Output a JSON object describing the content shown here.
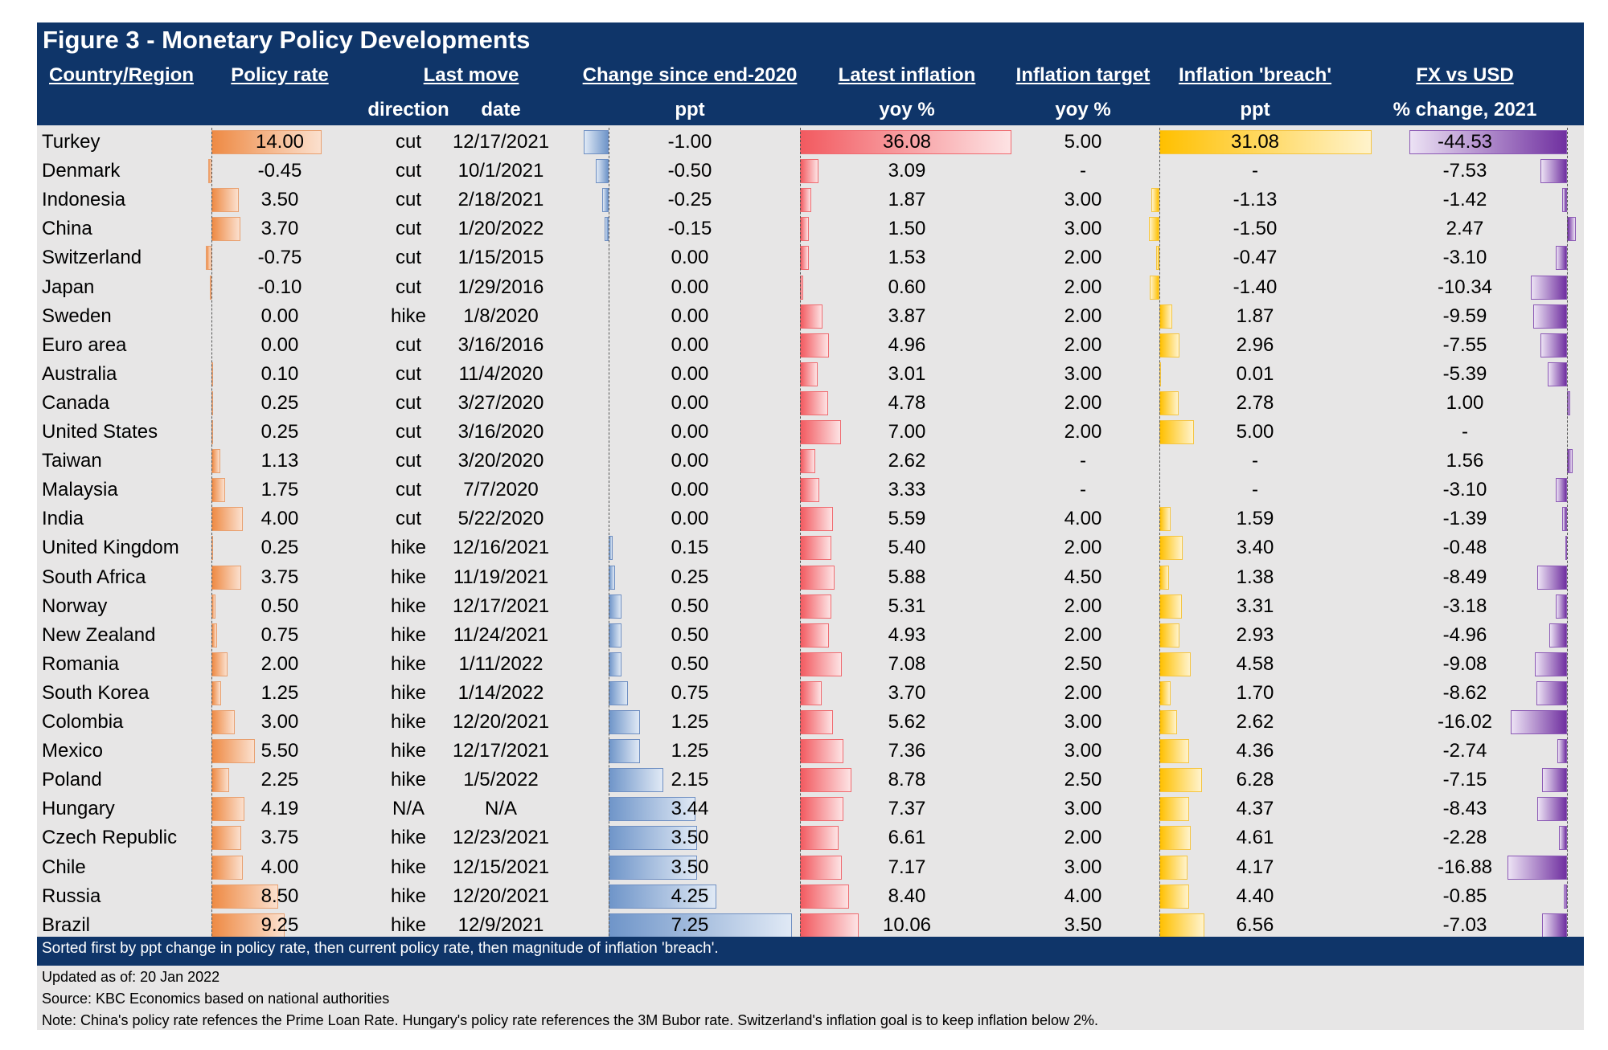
{
  "title": "Figure 3 - Monetary Policy Developments",
  "headers": {
    "country": "Country/Region",
    "policy_rate": "Policy rate",
    "last_move": "Last move",
    "change": "Change since end-2020",
    "latest_inflation": "Latest inflation",
    "inflation_target": "Inflation target",
    "breach": "Inflation 'breach'",
    "fx": "FX vs USD"
  },
  "subheaders": {
    "direction": "direction",
    "date": "date",
    "change": "ppt",
    "latest_inflation": "yoy %",
    "inflation_target": "yoy %",
    "breach": "ppt",
    "fx": "% change, 2021"
  },
  "rows": [
    {
      "country": "Turkey",
      "rate": "14.00",
      "dir": "cut",
      "date": "12/17/2021",
      "chg": "-1.00",
      "infl": "36.08",
      "target": "5.00",
      "breach": "31.08",
      "fx": "-44.53"
    },
    {
      "country": "Denmark",
      "rate": "-0.45",
      "dir": "cut",
      "date": "10/1/2021",
      "chg": "-0.50",
      "infl": "3.09",
      "target": "-",
      "breach": "-",
      "fx": "-7.53"
    },
    {
      "country": "Indonesia",
      "rate": "3.50",
      "dir": "cut",
      "date": "2/18/2021",
      "chg": "-0.25",
      "infl": "1.87",
      "target": "3.00",
      "breach": "-1.13",
      "fx": "-1.42"
    },
    {
      "country": "China",
      "rate": "3.70",
      "dir": "cut",
      "date": "1/20/2022",
      "chg": "-0.15",
      "infl": "1.50",
      "target": "3.00",
      "breach": "-1.50",
      "fx": "2.47"
    },
    {
      "country": "Switzerland",
      "rate": "-0.75",
      "dir": "cut",
      "date": "1/15/2015",
      "chg": "0.00",
      "infl": "1.53",
      "target": "2.00",
      "breach": "-0.47",
      "fx": "-3.10"
    },
    {
      "country": "Japan",
      "rate": "-0.10",
      "dir": "cut",
      "date": "1/29/2016",
      "chg": "0.00",
      "infl": "0.60",
      "target": "2.00",
      "breach": "-1.40",
      "fx": "-10.34"
    },
    {
      "country": "Sweden",
      "rate": "0.00",
      "dir": "hike",
      "date": "1/8/2020",
      "chg": "0.00",
      "infl": "3.87",
      "target": "2.00",
      "breach": "1.87",
      "fx": "-9.59"
    },
    {
      "country": "Euro area",
      "rate": "0.00",
      "dir": "cut",
      "date": "3/16/2016",
      "chg": "0.00",
      "infl": "4.96",
      "target": "2.00",
      "breach": "2.96",
      "fx": "-7.55"
    },
    {
      "country": "Australia",
      "rate": "0.10",
      "dir": "cut",
      "date": "11/4/2020",
      "chg": "0.00",
      "infl": "3.01",
      "target": "3.00",
      "breach": "0.01",
      "fx": "-5.39"
    },
    {
      "country": "Canada",
      "rate": "0.25",
      "dir": "cut",
      "date": "3/27/2020",
      "chg": "0.00",
      "infl": "4.78",
      "target": "2.00",
      "breach": "2.78",
      "fx": "1.00"
    },
    {
      "country": "United States",
      "rate": "0.25",
      "dir": "cut",
      "date": "3/16/2020",
      "chg": "0.00",
      "infl": "7.00",
      "target": "2.00",
      "breach": "5.00",
      "fx": "-"
    },
    {
      "country": "Taiwan",
      "rate": "1.13",
      "dir": "cut",
      "date": "3/20/2020",
      "chg": "0.00",
      "infl": "2.62",
      "target": "-",
      "breach": "-",
      "fx": "1.56"
    },
    {
      "country": "Malaysia",
      "rate": "1.75",
      "dir": "cut",
      "date": "7/7/2020",
      "chg": "0.00",
      "infl": "3.33",
      "target": "-",
      "breach": "-",
      "fx": "-3.10"
    },
    {
      "country": "India",
      "rate": "4.00",
      "dir": "cut",
      "date": "5/22/2020",
      "chg": "0.00",
      "infl": "5.59",
      "target": "4.00",
      "breach": "1.59",
      "fx": "-1.39"
    },
    {
      "country": "United Kingdom",
      "rate": "0.25",
      "dir": "hike",
      "date": "12/16/2021",
      "chg": "0.15",
      "infl": "5.40",
      "target": "2.00",
      "breach": "3.40",
      "fx": "-0.48"
    },
    {
      "country": "South Africa",
      "rate": "3.75",
      "dir": "hike",
      "date": "11/19/2021",
      "chg": "0.25",
      "infl": "5.88",
      "target": "4.50",
      "breach": "1.38",
      "fx": "-8.49"
    },
    {
      "country": "Norway",
      "rate": "0.50",
      "dir": "hike",
      "date": "12/17/2021",
      "chg": "0.50",
      "infl": "5.31",
      "target": "2.00",
      "breach": "3.31",
      "fx": "-3.18"
    },
    {
      "country": "New Zealand",
      "rate": "0.75",
      "dir": "hike",
      "date": "11/24/2021",
      "chg": "0.50",
      "infl": "4.93",
      "target": "2.00",
      "breach": "2.93",
      "fx": "-4.96"
    },
    {
      "country": "Romania",
      "rate": "2.00",
      "dir": "hike",
      "date": "1/11/2022",
      "chg": "0.50",
      "infl": "7.08",
      "target": "2.50",
      "breach": "4.58",
      "fx": "-9.08"
    },
    {
      "country": "South Korea",
      "rate": "1.25",
      "dir": "hike",
      "date": "1/14/2022",
      "chg": "0.75",
      "infl": "3.70",
      "target": "2.00",
      "breach": "1.70",
      "fx": "-8.62"
    },
    {
      "country": "Colombia",
      "rate": "3.00",
      "dir": "hike",
      "date": "12/20/2021",
      "chg": "1.25",
      "infl": "5.62",
      "target": "3.00",
      "breach": "2.62",
      "fx": "-16.02"
    },
    {
      "country": "Mexico",
      "rate": "5.50",
      "dir": "hike",
      "date": "12/17/2021",
      "chg": "1.25",
      "infl": "7.36",
      "target": "3.00",
      "breach": "4.36",
      "fx": "-2.74"
    },
    {
      "country": "Poland",
      "rate": "2.25",
      "dir": "hike",
      "date": "1/5/2022",
      "chg": "2.15",
      "infl": "8.78",
      "target": "2.50",
      "breach": "6.28",
      "fx": "-7.15"
    },
    {
      "country": "Hungary",
      "rate": "4.19",
      "dir": "N/A",
      "date": "N/A",
      "chg": "3.44",
      "infl": "7.37",
      "target": "3.00",
      "breach": "4.37",
      "fx": "-8.43"
    },
    {
      "country": "Czech Republic",
      "rate": "3.75",
      "dir": "hike",
      "date": "12/23/2021",
      "chg": "3.50",
      "infl": "6.61",
      "target": "2.00",
      "breach": "4.61",
      "fx": "-2.28"
    },
    {
      "country": "Chile",
      "rate": "4.00",
      "dir": "hike",
      "date": "12/15/2021",
      "chg": "3.50",
      "infl": "7.17",
      "target": "3.00",
      "breach": "4.17",
      "fx": "-16.88"
    },
    {
      "country": "Russia",
      "rate": "8.50",
      "dir": "hike",
      "date": "12/20/2021",
      "chg": "4.25",
      "infl": "8.40",
      "target": "4.00",
      "breach": "4.40",
      "fx": "-0.85"
    },
    {
      "country": "Brazil",
      "rate": "9.25",
      "dir": "hike",
      "date": "12/9/2021",
      "chg": "7.25",
      "infl": "10.06",
      "target": "3.50",
      "breach": "6.56",
      "fx": "-7.03"
    }
  ],
  "footer": "Sorted first by ppt change in policy rate, then current policy rate, then magnitude of inflation 'breach'.",
  "updated": "Updated as of: 20 Jan 2022",
  "source": "Source: KBC Economics based on national authorities",
  "note": "Note: China's policy rate refences the Prime Loan Rate. Hungary's policy rate references the 3M Bubor rate. Switzerland's inflation goal is to keep inflation below 2%.",
  "colors": {
    "header_bg": "#0f3569",
    "table_bg": "#e7e6e6",
    "policy_rate_bar": "#ee8a44",
    "change_bar": "#6f95c9",
    "inflation_bar": "#f25a60",
    "breach_bar": "#ffc000",
    "fx_bar": "#7030a0"
  }
}
